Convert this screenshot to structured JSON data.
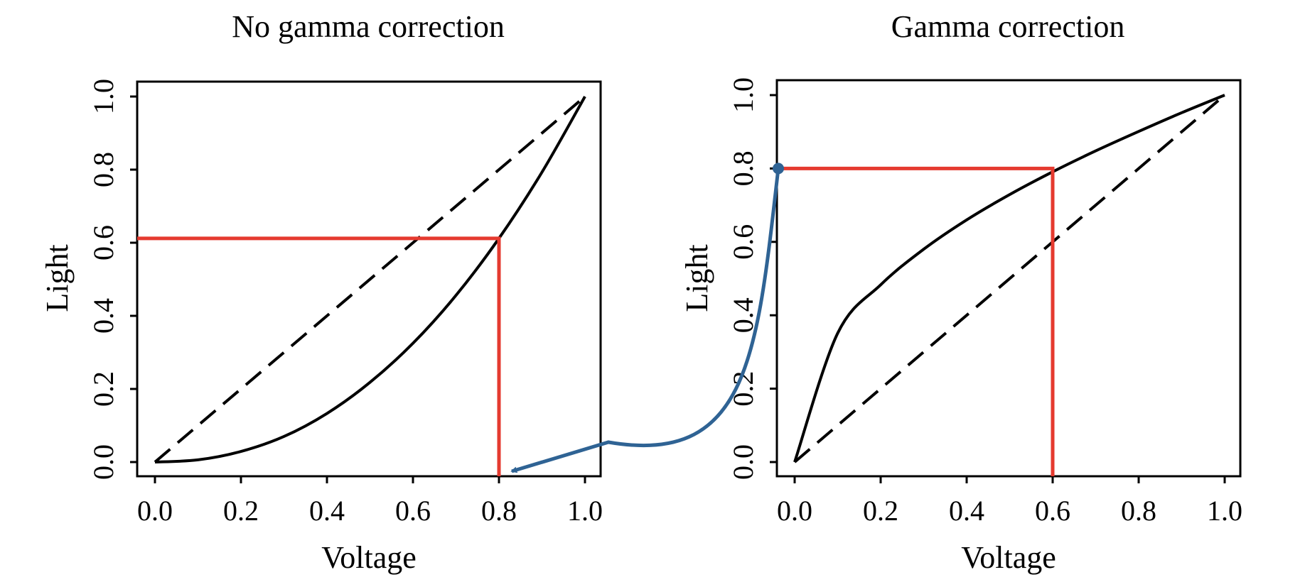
{
  "chart_data": [
    {
      "type": "line",
      "title": "No gamma correction",
      "xlabel": "Voltage",
      "ylabel": "Light",
      "xlim": [
        0,
        1
      ],
      "ylim": [
        0,
        1
      ],
      "xticks": [
        "0.0",
        "0.2",
        "0.4",
        "0.6",
        "0.8",
        "1.0"
      ],
      "yticks": [
        "0.0",
        "0.2",
        "0.4",
        "0.6",
        "0.8",
        "1.0"
      ],
      "grid": false,
      "series": [
        {
          "style": "solid",
          "color": "#000000",
          "x": [
            0,
            0.1,
            0.2,
            0.3,
            0.4,
            0.5,
            0.6,
            0.7,
            0.8,
            0.9,
            1.0
          ],
          "y": [
            0,
            0.006,
            0.029,
            0.07,
            0.133,
            0.218,
            0.325,
            0.456,
            0.612,
            0.793,
            1.0
          ]
        },
        {
          "style": "dashed",
          "color": "#000000",
          "x": [
            0,
            1
          ],
          "y": [
            0,
            1
          ]
        }
      ],
      "annotations": [
        {
          "type": "red-guide",
          "color": "#e53a2f",
          "x": 0.8,
          "y": 0.612
        }
      ]
    },
    {
      "type": "line",
      "title": "Gamma correction",
      "xlabel": "Voltage",
      "ylabel": "Light",
      "xlim": [
        0,
        1
      ],
      "ylim": [
        0,
        1
      ],
      "xticks": [
        "0.0",
        "0.2",
        "0.4",
        "0.6",
        "0.8",
        "1.0"
      ],
      "yticks": [
        "0.0",
        "0.2",
        "0.4",
        "0.6",
        "0.8",
        "1.0"
      ],
      "grid": false,
      "series": [
        {
          "style": "solid",
          "color": "#000000",
          "x": [
            0,
            0.1,
            0.2,
            0.3,
            0.4,
            0.5,
            0.6,
            0.7,
            0.8,
            0.9,
            1.0
          ],
          "y": [
            0,
            0.351,
            0.483,
            0.58,
            0.66,
            0.729,
            0.791,
            0.848,
            0.901,
            0.952,
            1.0
          ]
        },
        {
          "style": "dashed",
          "color": "#000000",
          "x": [
            0,
            1
          ],
          "y": [
            0,
            1
          ]
        }
      ],
      "annotations": [
        {
          "type": "red-guide",
          "color": "#e53a2f",
          "x": 0.6,
          "y": 0.8
        }
      ]
    }
  ],
  "connector": {
    "color": "#2f6394",
    "from": "right chart y-axis at 0.8",
    "to": "left chart x-axis at 0.8"
  }
}
